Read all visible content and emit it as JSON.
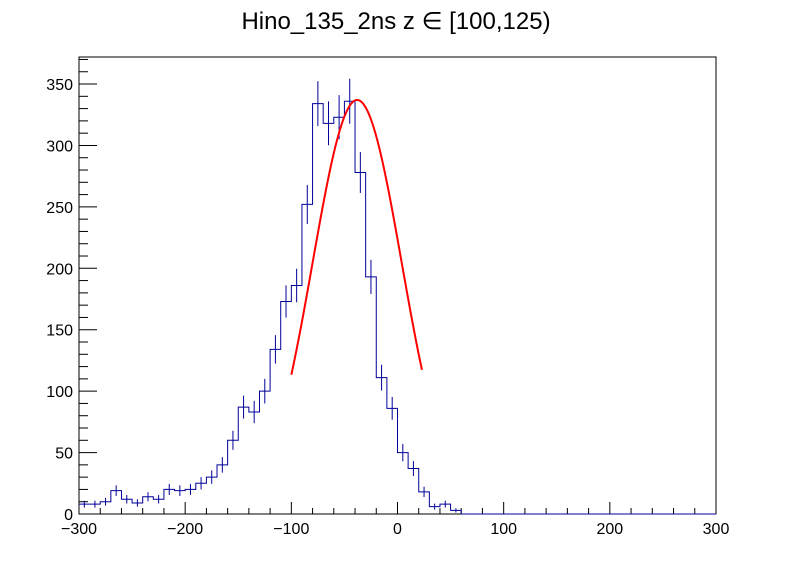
{
  "chart_data": {
    "type": "histogram",
    "title": "Hino_135_2ns z  ∈ [100,125)",
    "xlabel": "",
    "ylabel": "",
    "xlim": [
      -300,
      300
    ],
    "ylim": [
      0,
      372
    ],
    "x_ticks": [
      -300,
      -200,
      -100,
      0,
      100,
      200,
      300
    ],
    "x_tick_labels": [
      "−300",
      "−200",
      "−100",
      "0",
      "100",
      "200",
      "300"
    ],
    "y_ticks": [
      0,
      50,
      100,
      150,
      200,
      250,
      300,
      350
    ],
    "y_tick_labels": [
      "0",
      "50",
      "100",
      "150",
      "200",
      "250",
      "300",
      "350"
    ],
    "bin_width": 10,
    "bin_low_edges": [
      -300,
      -290,
      -280,
      -270,
      -260,
      -250,
      -240,
      -230,
      -220,
      -210,
      -200,
      -190,
      -180,
      -170,
      -160,
      -150,
      -140,
      -130,
      -120,
      -110,
      -100,
      -90,
      -80,
      -70,
      -60,
      -50,
      -40,
      -30,
      -20,
      -10,
      0,
      10,
      20,
      30,
      40,
      50,
      60,
      70,
      80,
      90,
      100,
      110,
      120,
      130,
      140,
      150,
      160,
      170,
      180,
      190,
      200,
      210,
      220,
      230,
      240,
      250,
      260,
      270,
      280,
      290
    ],
    "counts": [
      8,
      8,
      10,
      19,
      12,
      9,
      14,
      12,
      20,
      19,
      20,
      25,
      30,
      40,
      60,
      87,
      83,
      100,
      134,
      173,
      186,
      252,
      334,
      318,
      323,
      336,
      278,
      193,
      111,
      86,
      50,
      37,
      18,
      6,
      8,
      3,
      0,
      0,
      0,
      0,
      0,
      0,
      0,
      0,
      0,
      0,
      0,
      0,
      0,
      0,
      0,
      0,
      0,
      0,
      0,
      0,
      0,
      0,
      0,
      0
    ],
    "series": [
      {
        "color": "#000099"
      }
    ],
    "fit": {
      "type": "gaussian",
      "color": "#ff0000",
      "amplitude": 337,
      "mean": -38,
      "sigma": 42,
      "range": [
        -100,
        23
      ]
    },
    "grid": false,
    "legend": false
  }
}
